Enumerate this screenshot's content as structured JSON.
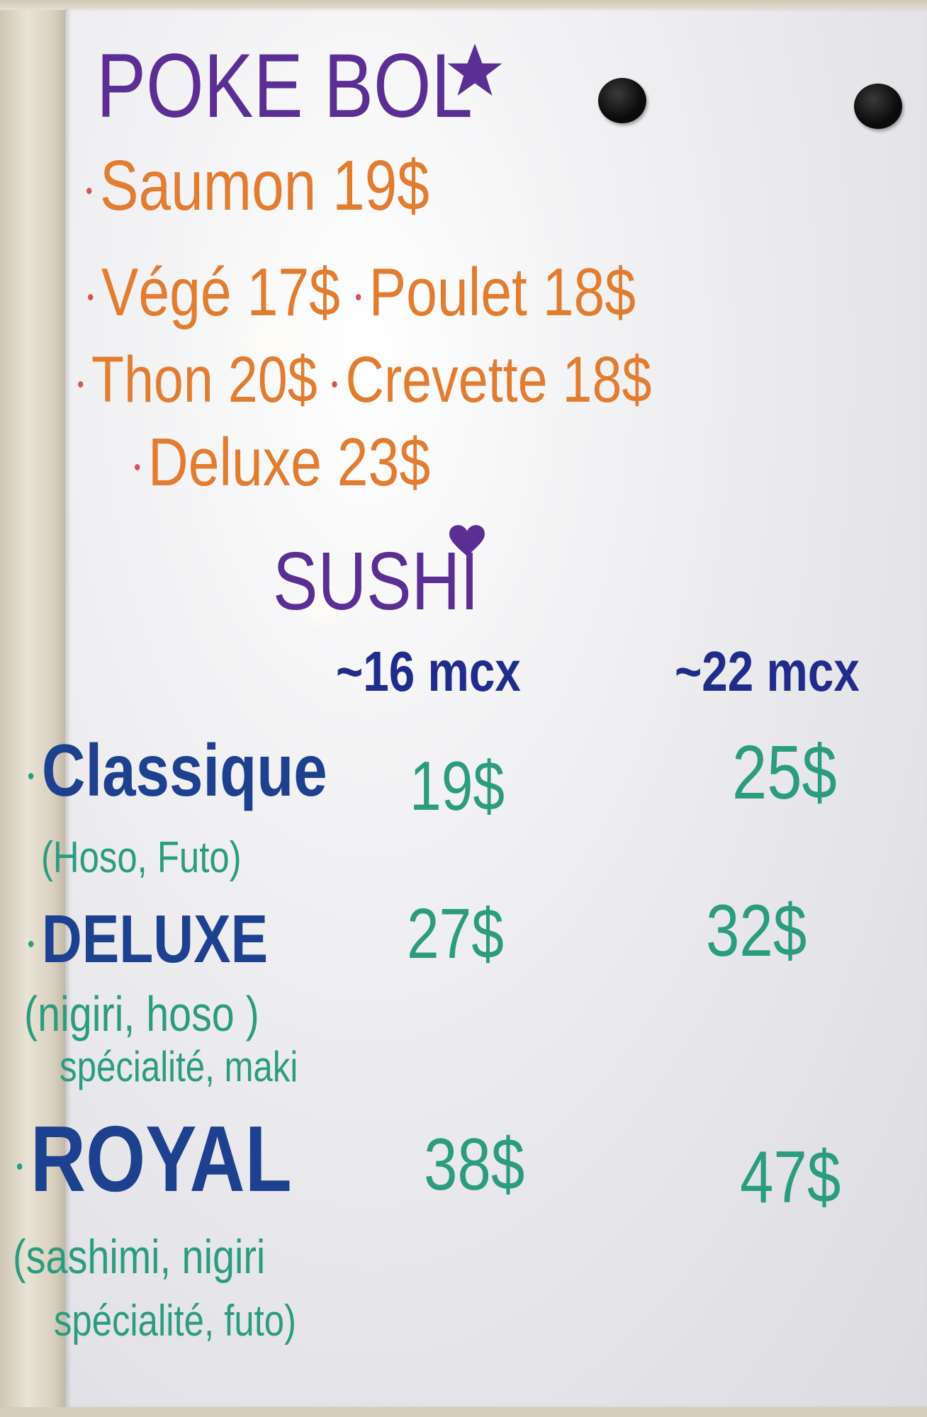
{
  "colors": {
    "title": "#5b2e94",
    "poke_items": "#e27c2f",
    "size_headers": "#1f2c8c",
    "sushi_names": "#1d418f",
    "prices": "#2c9c7e"
  },
  "icons": [
    "star-icon",
    "heart-icon",
    "magnet",
    "magnet"
  ],
  "poke": {
    "title": "POKE BOL",
    "items": [
      {
        "name": "Saumon",
        "price": "19$"
      },
      {
        "name": "Végé",
        "price": "17$"
      },
      {
        "name": "Poulet",
        "price": "18$"
      },
      {
        "name": "Thon",
        "price": "20$"
      },
      {
        "name": "Crevette",
        "price": "18$"
      },
      {
        "name": "Deluxe",
        "price": "23$"
      }
    ]
  },
  "sushi": {
    "title": "SUSHI",
    "sizes": [
      "~16 mcx",
      "~22 mcx"
    ],
    "items": [
      {
        "name": "Classique",
        "desc": [
          "(Hoso, Futo)"
        ],
        "prices": [
          "19$",
          "25$"
        ]
      },
      {
        "name": "DELUXE",
        "desc": [
          "(nigiri, hoso )",
          "spécialité, maki"
        ],
        "prices": [
          "27$",
          "32$"
        ]
      },
      {
        "name": "ROYAL",
        "desc": [
          "(sashimi, nigiri",
          "spécialité, futo)"
        ],
        "prices": [
          "38$",
          "47$"
        ]
      }
    ]
  }
}
